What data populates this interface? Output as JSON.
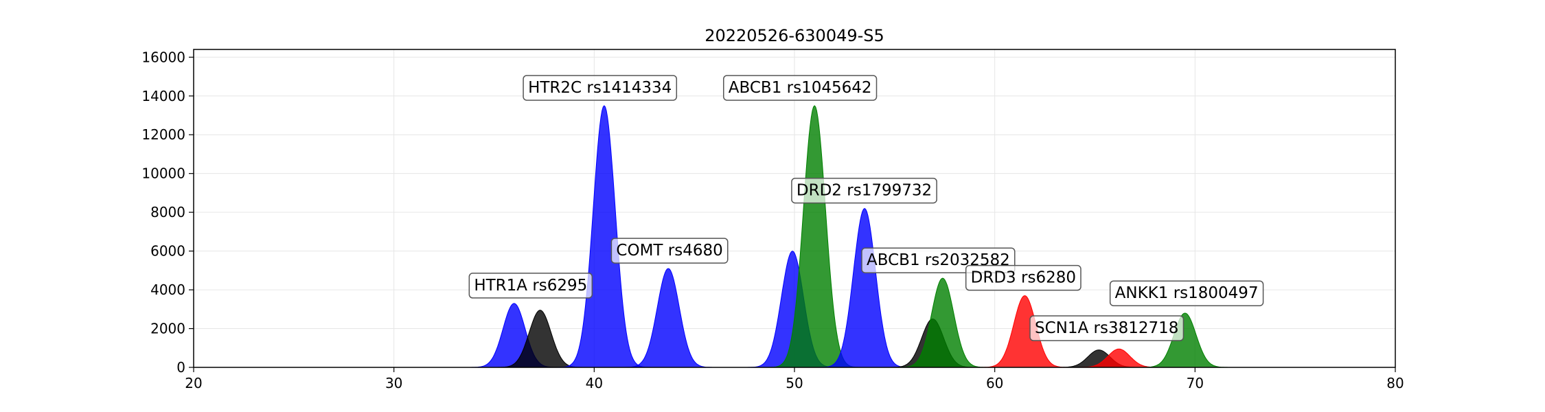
{
  "chart_data": {
    "type": "area",
    "title": "20220526-630049-S5",
    "xlabel": "",
    "ylabel": "",
    "xlim": [
      20,
      80
    ],
    "ylim": [
      0,
      16400
    ],
    "x_ticks": [
      "20",
      "30",
      "40",
      "50",
      "60",
      "70",
      "80"
    ],
    "y_ticks": [
      "0",
      "2000",
      "4000",
      "6000",
      "8000",
      "10000",
      "12000",
      "14000",
      "16000"
    ],
    "grid": true,
    "peaks": [
      {
        "center": 36.0,
        "height": 3300,
        "sigma": 0.55,
        "color": "#0000ff"
      },
      {
        "center": 37.3,
        "height": 2950,
        "sigma": 0.55,
        "color": "#000000"
      },
      {
        "center": 40.5,
        "height": 13500,
        "sigma": 0.55,
        "color": "#0000ff"
      },
      {
        "center": 43.7,
        "height": 5100,
        "sigma": 0.55,
        "color": "#0000ff"
      },
      {
        "center": 49.9,
        "height": 6000,
        "sigma": 0.55,
        "color": "#0000ff"
      },
      {
        "center": 51.0,
        "height": 13500,
        "sigma": 0.55,
        "color": "#008000"
      },
      {
        "center": 53.5,
        "height": 8200,
        "sigma": 0.55,
        "color": "#0000ff"
      },
      {
        "center": 56.9,
        "height": 2500,
        "sigma": 0.55,
        "color": "#000000"
      },
      {
        "center": 57.4,
        "height": 4600,
        "sigma": 0.55,
        "color": "#008000"
      },
      {
        "center": 61.5,
        "height": 3700,
        "sigma": 0.55,
        "color": "#ff0000"
      },
      {
        "center": 65.2,
        "height": 900,
        "sigma": 0.55,
        "color": "#000000"
      },
      {
        "center": 66.2,
        "height": 950,
        "sigma": 0.55,
        "color": "#ff0000"
      },
      {
        "center": 69.5,
        "height": 2800,
        "sigma": 0.55,
        "color": "#008000"
      }
    ],
    "annotations": [
      {
        "text": "HTR1A rs6295",
        "x": 34.0,
        "y": 4200
      },
      {
        "text": "HTR2C rs1414334",
        "x": 36.7,
        "y": 14400
      },
      {
        "text": "COMT rs4680",
        "x": 41.1,
        "y": 6000
      },
      {
        "text": "ABCB1 rs1045642",
        "x": 46.7,
        "y": 14400
      },
      {
        "text": "DRD2 rs1799732",
        "x": 50.1,
        "y": 9100
      },
      {
        "text": "ABCB1 rs2032582",
        "x": 53.6,
        "y": 5500
      },
      {
        "text": "DRD3 rs6280",
        "x": 58.8,
        "y": 4600
      },
      {
        "text": "SCN1A rs3812718",
        "x": 62.0,
        "y": 2000
      },
      {
        "text": "ANKK1 rs1800497",
        "x": 66.0,
        "y": 3800
      }
    ]
  }
}
